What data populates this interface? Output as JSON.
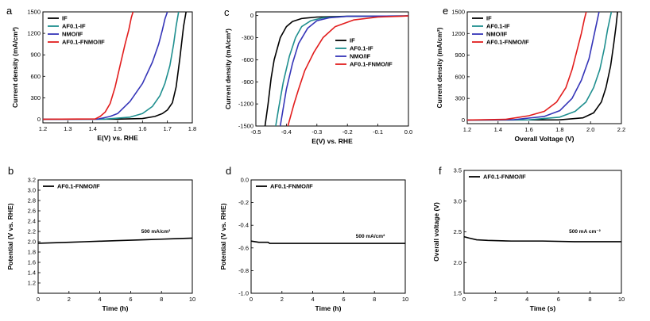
{
  "chart_data": [
    {
      "panel": "a",
      "type": "line",
      "xlabel": "E(V) vs. RHE",
      "ylabel": "Current density (mA/cm²)",
      "xlim": [
        1.2,
        1.8
      ],
      "ylim": [
        -50,
        1500
      ],
      "xticks": [
        1.2,
        1.3,
        1.4,
        1.5,
        1.6,
        1.7,
        1.8
      ],
      "yticks": [
        0,
        300,
        600,
        900,
        1200,
        1500
      ],
      "legend_position": "top-left",
      "series": [
        {
          "name": "IF",
          "color": "#000000",
          "x": [
            1.2,
            1.5,
            1.6,
            1.65,
            1.68,
            1.7,
            1.72,
            1.735,
            1.75,
            1.765,
            1.775
          ],
          "y": [
            0,
            2,
            10,
            40,
            80,
            130,
            230,
            450,
            850,
            1300,
            1500
          ]
        },
        {
          "name": "AF0.1-IF",
          "color": "#1f8f8f",
          "x": [
            1.2,
            1.45,
            1.55,
            1.6,
            1.64,
            1.67,
            1.69,
            1.71,
            1.725,
            1.735,
            1.745
          ],
          "y": [
            0,
            2,
            30,
            80,
            180,
            330,
            500,
            750,
            1050,
            1300,
            1500
          ]
        },
        {
          "name": "NMO/IF",
          "color": "#3535b8",
          "x": [
            1.2,
            1.42,
            1.47,
            1.5,
            1.55,
            1.6,
            1.64,
            1.665,
            1.68,
            1.69,
            1.7
          ],
          "y": [
            0,
            2,
            40,
            80,
            250,
            500,
            800,
            1050,
            1250,
            1400,
            1500
          ]
        },
        {
          "name": "AF0.1-FNMO/IF",
          "color": "#e21d1d",
          "x": [
            1.2,
            1.41,
            1.43,
            1.45,
            1.47,
            1.49,
            1.51,
            1.53,
            1.545,
            1.555,
            1.562
          ],
          "y": [
            0,
            5,
            40,
            100,
            220,
            450,
            750,
            1050,
            1250,
            1420,
            1500
          ]
        }
      ]
    },
    {
      "panel": "c",
      "type": "line",
      "xlabel": "E(V) vs. RHE",
      "ylabel": "Current density (mA/cm²)",
      "xlim": [
        -0.5,
        0.0
      ],
      "ylim": [
        -1500,
        50
      ],
      "xticks": [
        -0.5,
        -0.4,
        -0.3,
        -0.2,
        -0.1,
        0.0
      ],
      "yticks": [
        0,
        -300,
        -600,
        -900,
        -1200,
        -1500
      ],
      "legend_position": "center-right",
      "series": [
        {
          "name": "IF",
          "color": "#000000",
          "x": [
            0.0,
            -0.2,
            -0.3,
            -0.35,
            -0.38,
            -0.4,
            -0.42,
            -0.44,
            -0.45,
            -0.46,
            -0.47
          ],
          "y": [
            -5,
            -10,
            -20,
            -40,
            -80,
            -150,
            -300,
            -600,
            -850,
            -1200,
            -1500
          ]
        },
        {
          "name": "AF0.1-IF",
          "color": "#1f8f8f",
          "x": [
            0.0,
            -0.2,
            -0.28,
            -0.32,
            -0.35,
            -0.37,
            -0.39,
            -0.41,
            -0.425,
            -0.435
          ],
          "y": [
            -5,
            -10,
            -30,
            -70,
            -150,
            -300,
            -550,
            -900,
            -1250,
            -1500
          ]
        },
        {
          "name": "NMO/IF",
          "color": "#3535b8",
          "x": [
            0.0,
            -0.2,
            -0.26,
            -0.3,
            -0.33,
            -0.36,
            -0.38,
            -0.4,
            -0.41,
            -0.42
          ],
          "y": [
            -5,
            -10,
            -30,
            -70,
            -170,
            -380,
            -650,
            -1000,
            -1250,
            -1500
          ]
        },
        {
          "name": "AF0.1-FNMO/IF",
          "color": "#e21d1d",
          "x": [
            0.0,
            -0.1,
            -0.18,
            -0.24,
            -0.28,
            -0.31,
            -0.34,
            -0.36,
            -0.375,
            -0.385,
            -0.395
          ],
          "y": [
            -5,
            -20,
            -60,
            -150,
            -300,
            -500,
            -750,
            -1000,
            -1200,
            -1350,
            -1500
          ]
        }
      ]
    },
    {
      "panel": "e",
      "type": "line",
      "xlabel": "Overall Voltage (V)",
      "ylabel": "Current density (mA/cm²)",
      "xlim": [
        1.2,
        2.2
      ],
      "ylim": [
        -50,
        1500
      ],
      "xticks": [
        1.2,
        1.4,
        1.6,
        1.8,
        2.0,
        2.2
      ],
      "yticks": [
        0,
        300,
        600,
        900,
        1200,
        1500
      ],
      "legend_position": "top-left",
      "series": [
        {
          "name": "IF",
          "color": "#000000",
          "x": [
            1.2,
            1.8,
            1.95,
            2.02,
            2.07,
            2.1,
            2.13,
            2.15,
            2.165,
            2.175
          ],
          "y": [
            0,
            3,
            30,
            100,
            250,
            450,
            750,
            1050,
            1300,
            1500
          ]
        },
        {
          "name": "AF0.1-IF",
          "color": "#1f8f8f",
          "x": [
            1.2,
            1.6,
            1.8,
            1.9,
            1.97,
            2.02,
            2.06,
            2.09,
            2.11,
            2.125,
            2.135
          ],
          "y": [
            0,
            3,
            40,
            120,
            250,
            450,
            700,
            1000,
            1250,
            1400,
            1500
          ]
        },
        {
          "name": "NMO/IF",
          "color": "#3535b8",
          "x": [
            1.2,
            1.5,
            1.7,
            1.8,
            1.88,
            1.94,
            1.99,
            2.02,
            2.04,
            2.055
          ],
          "y": [
            0,
            5,
            50,
            130,
            300,
            550,
            850,
            1150,
            1350,
            1500
          ]
        },
        {
          "name": "AF0.1-FNMO/IF",
          "color": "#e21d1d",
          "x": [
            1.2,
            1.45,
            1.6,
            1.7,
            1.78,
            1.84,
            1.88,
            1.91,
            1.94,
            1.96,
            1.972
          ],
          "y": [
            0,
            10,
            60,
            120,
            250,
            450,
            700,
            950,
            1200,
            1400,
            1500
          ]
        }
      ]
    },
    {
      "panel": "b",
      "type": "line",
      "xlabel": "Time (h)",
      "ylabel": "Potential (V vs. RHE)",
      "xlim": [
        0,
        10
      ],
      "ylim": [
        1.0,
        3.2
      ],
      "xticks": [
        0,
        2,
        4,
        6,
        8,
        10
      ],
      "yticks": [
        1.2,
        1.4,
        1.6,
        1.8,
        2.0,
        2.2,
        2.4,
        2.6,
        2.8,
        3.0,
        3.2
      ],
      "annotation": "500 mA/cm²",
      "legend_position": "top-left",
      "series": [
        {
          "name": "AF0.1-FNMO/IF",
          "color": "#000000",
          "x": [
            0,
            1,
            2,
            3,
            4,
            5,
            6,
            7,
            8,
            9,
            10
          ],
          "y": [
            1.97,
            1.98,
            1.99,
            2.0,
            2.01,
            2.02,
            2.03,
            2.04,
            2.05,
            2.06,
            2.07
          ]
        }
      ]
    },
    {
      "panel": "d",
      "type": "line",
      "xlabel": "Time (h)",
      "ylabel": "Potential (V vs. RHE)",
      "xlim": [
        0,
        10
      ],
      "ylim": [
        -1.0,
        0.0
      ],
      "xticks": [
        0,
        2,
        4,
        6,
        8,
        10
      ],
      "yticks": [
        0.0,
        -0.2,
        -0.4,
        -0.6,
        -0.8,
        -1.0
      ],
      "annotation": "500 mA/cm²",
      "legend_position": "top-left",
      "series": [
        {
          "name": "AF0.1-FNMO/IF",
          "color": "#000000",
          "x": [
            0,
            0.5,
            1.1,
            1.2,
            2,
            4,
            6,
            8,
            10
          ],
          "y": [
            -0.54,
            -0.55,
            -0.55,
            -0.56,
            -0.56,
            -0.56,
            -0.56,
            -0.56,
            -0.56
          ]
        }
      ]
    },
    {
      "panel": "f",
      "type": "line",
      "xlabel": "Time (s)",
      "ylabel": "Overall voltage (V)",
      "xlim": [
        0,
        10
      ],
      "ylim": [
        1.5,
        3.5
      ],
      "xticks": [
        0,
        2,
        4,
        6,
        8,
        10
      ],
      "yticks": [
        1.5,
        2.0,
        2.5,
        3.0,
        3.5
      ],
      "annotation": "500 mA cm⁻²",
      "legend_position": "top-left",
      "series": [
        {
          "name": "AF0.1-FNMO/IF",
          "color": "#000000",
          "x": [
            0,
            0.3,
            0.8,
            1.5,
            3,
            5,
            7,
            10
          ],
          "y": [
            2.42,
            2.4,
            2.37,
            2.36,
            2.35,
            2.35,
            2.34,
            2.34
          ]
        }
      ]
    }
  ]
}
